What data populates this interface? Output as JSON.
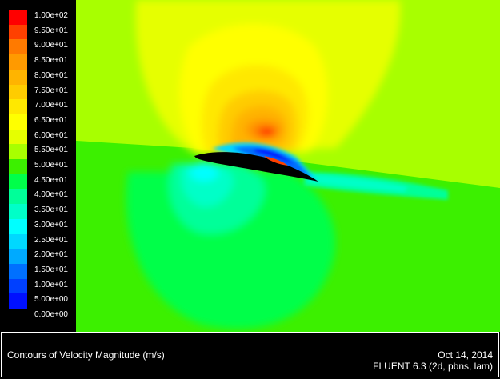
{
  "legend": {
    "levels": [
      {
        "label": "1.00e+02",
        "color": "#ff0000"
      },
      {
        "label": "9.50e+01",
        "color": "#ff4000"
      },
      {
        "label": "9.00e+01",
        "color": "#ff7a00"
      },
      {
        "label": "8.50e+01",
        "color": "#ff9a00"
      },
      {
        "label": "8.00e+01",
        "color": "#ffb400"
      },
      {
        "label": "7.50e+01",
        "color": "#ffcc00"
      },
      {
        "label": "7.00e+01",
        "color": "#ffe800"
      },
      {
        "label": "6.50e+01",
        "color": "#ffff00"
      },
      {
        "label": "6.00e+01",
        "color": "#e6ff00"
      },
      {
        "label": "5.50e+01",
        "color": "#a8ff00"
      },
      {
        "label": "5.00e+01",
        "color": "#3cf000"
      },
      {
        "label": "4.50e+01",
        "color": "#00ff4a"
      },
      {
        "label": "4.00e+01",
        "color": "#00ff99"
      },
      {
        "label": "3.50e+01",
        "color": "#00ffc8"
      },
      {
        "label": "3.00e+01",
        "color": "#00ffff"
      },
      {
        "label": "2.50e+01",
        "color": "#00d8ff"
      },
      {
        "label": "2.00e+01",
        "color": "#00aaff"
      },
      {
        "label": "1.50e+01",
        "color": "#0070ff"
      },
      {
        "label": "1.00e+01",
        "color": "#0040ff"
      },
      {
        "label": "5.00e+00",
        "color": "#0010ff"
      },
      {
        "label": "0.00e+00",
        "color": "#000000"
      }
    ]
  },
  "footer": {
    "title": "Contours of Velocity Magnitude (m/s)",
    "date": "Oct 14, 2014",
    "solver": "FLUENT 6.3 (2d, pbns, lam)"
  },
  "colors": {
    "background": "#000000",
    "far_field_upper": "#a8ff00",
    "far_field_lower": "#3cf000",
    "text": "#ffffff"
  }
}
